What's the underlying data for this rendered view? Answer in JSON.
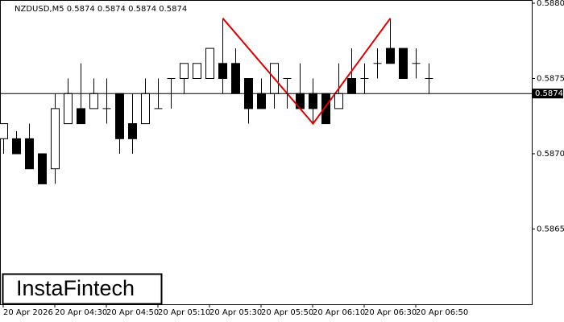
{
  "chart_data": {
    "type": "candlestick",
    "title": "NZDUSD,M5  0.5874 0.5874 0.5874 0.5874",
    "watermark": "InstaFintech",
    "categories": [
      "20 Apr 2026",
      null,
      null,
      null,
      "20 Apr 04:30",
      null,
      null,
      null,
      "20 Apr 04:50",
      null,
      null,
      null,
      "20 Apr 05:10",
      null,
      null,
      null,
      "20 Apr 05:30",
      null,
      null,
      null,
      "20 Apr 05:50",
      null,
      null,
      null,
      "20 Apr 06:10",
      null,
      null,
      null,
      "20 Apr 06:30",
      null,
      null,
      null,
      "20 Apr 06:50",
      null
    ],
    "open": [
      0.5871,
      0.5871,
      0.5871,
      0.587,
      0.5869,
      0.5872,
      0.5873,
      0.5873,
      0.5873,
      0.5874,
      0.5872,
      0.5872,
      0.5873,
      0.5875,
      0.5875,
      0.5875,
      0.5875,
      0.5876,
      0.5876,
      0.5875,
      0.5874,
      0.5874,
      0.5875,
      0.5874,
      0.5874,
      0.5874,
      0.5873,
      0.5875,
      0.5875,
      0.5876,
      0.5877,
      0.5877,
      0.5876,
      0.5875
    ],
    "high": [
      0.5872,
      0.58715,
      0.5872,
      0.587,
      0.5874,
      0.5875,
      0.5876,
      0.5875,
      0.5875,
      0.5874,
      0.5874,
      0.5875,
      0.5875,
      0.5875,
      0.5876,
      0.5876,
      0.5877,
      0.5879,
      0.5877,
      0.5875,
      0.5875,
      0.5876,
      0.5875,
      0.5876,
      0.5875,
      0.5874,
      0.5876,
      0.5877,
      0.5876,
      0.5877,
      0.5879,
      0.5877,
      0.5877,
      0.5876
    ],
    "low": [
      0.587,
      0.587,
      0.5869,
      0.5868,
      0.5868,
      0.5872,
      0.5872,
      0.5873,
      0.5872,
      0.587,
      0.587,
      0.5872,
      0.5873,
      0.5873,
      0.5874,
      0.5875,
      0.5875,
      0.5874,
      0.5874,
      0.5872,
      0.5873,
      0.5873,
      0.5873,
      0.5873,
      0.5872,
      0.5872,
      0.5873,
      0.5874,
      0.5874,
      0.5875,
      0.5876,
      0.5875,
      0.5875,
      0.5874
    ],
    "close": [
      0.5872,
      0.587,
      0.5869,
      0.5868,
      0.5873,
      0.5874,
      0.5872,
      0.5874,
      0.5873,
      0.5871,
      0.5871,
      0.5874,
      0.5873,
      0.5875,
      0.5876,
      0.5876,
      0.5877,
      0.5875,
      0.5874,
      0.5873,
      0.5873,
      0.5876,
      0.5875,
      0.5873,
      0.5873,
      0.5872,
      0.5874,
      0.5874,
      0.5875,
      0.5876,
      0.5876,
      0.5875,
      0.5876,
      0.5875
    ],
    "current_price": 0.5874,
    "ylim": [
      0.586,
      0.588
    ],
    "yticks": [
      0.5865,
      {
        "value": 0.587,
        "label": "0.5870"
      },
      0.5875,
      {
        "value": 0.588,
        "label": "0.5880"
      }
    ],
    "pattern_color": "#e00000"
  }
}
